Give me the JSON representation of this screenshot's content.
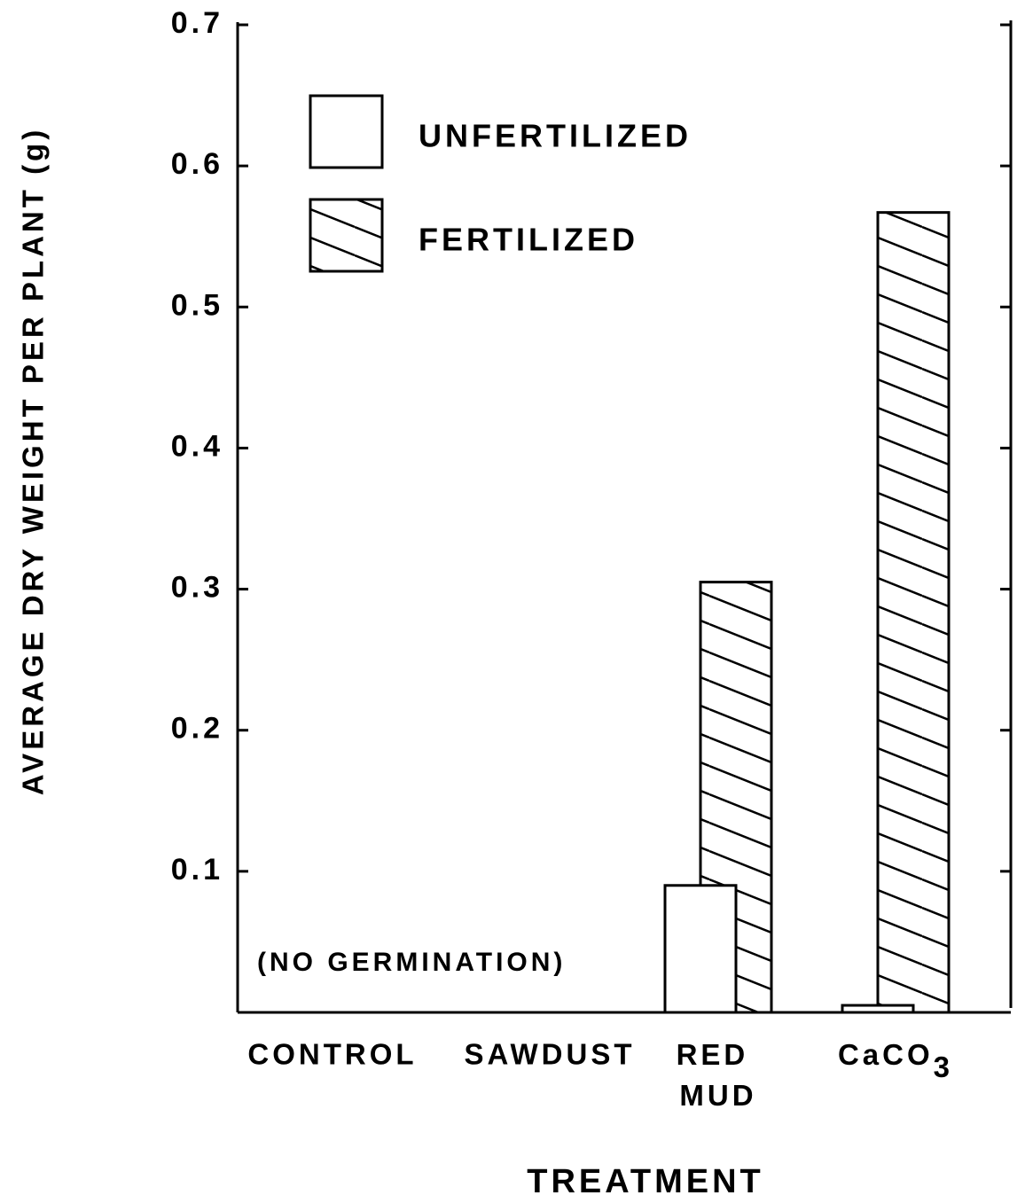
{
  "chart_data": {
    "type": "bar",
    "y_label": "AVERAGE DRY WEIGHT PER PLANT (g)",
    "x_label": "TREATMENT",
    "annotation": "(NO GERMINATION)",
    "categories": [
      "CONTROL",
      "SAWDUST",
      "RED MUD",
      "CaCO3"
    ],
    "series": [
      {
        "name": "UNFERTILIZED",
        "color": "#ffffff",
        "hatch": false,
        "values": [
          null,
          null,
          0.09,
          0.005
        ]
      },
      {
        "name": "FERTILIZED",
        "color": "#ffffff",
        "hatch": true,
        "values": [
          null,
          null,
          0.305,
          0.567
        ]
      }
    ],
    "ylim": [
      0,
      0.7
    ],
    "yticks": [
      0.1,
      0.2,
      0.3,
      0.4,
      0.5,
      0.6,
      0.7
    ],
    "grid": false
  }
}
